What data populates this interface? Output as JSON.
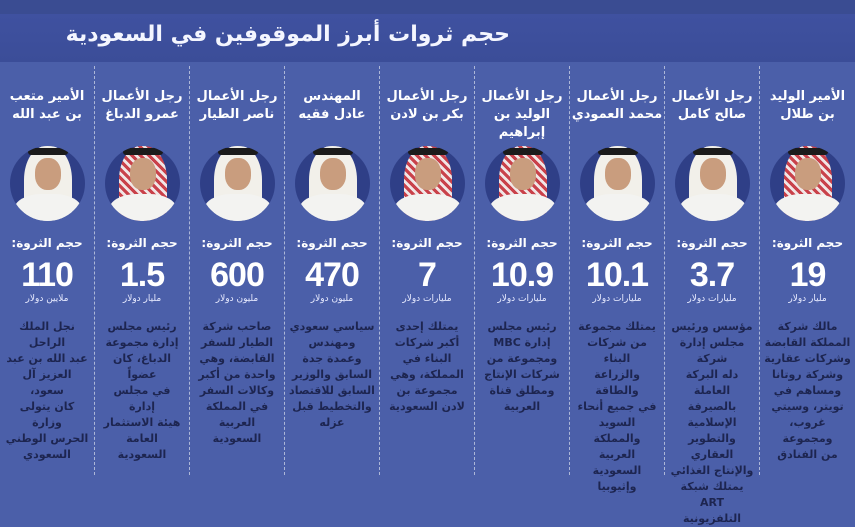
{
  "title": "حجم ثروات أبرز الموقوفين في السعودية",
  "colors": {
    "background": "#4b5fa9",
    "title_bar": "#3b4d98",
    "portrait_bg": "#2f3f87",
    "description_text": "#1d2550"
  },
  "wealth_label": "حجم الثروة:",
  "people": [
    {
      "name": "الأمير الوليد\nبن طلال",
      "value": "19",
      "unit": "مليار دولار",
      "desc": "مالك شركة\nالمملكة القابضة\nوشركات عقارية\nوشركة روتانا\nومساهم في\nتويتر، وسيتي\nغروب، ومجموعة\nمن الفنادق",
      "icon": "person-portrait",
      "headwear": "red"
    },
    {
      "name": "رجل الأعمال\nصالح كامل",
      "value": "3.7",
      "unit": "مليارات دولار",
      "desc": "مؤسس ورئيس\nمجلس إدارة شركة\nدله البركة العاملة\nبالصيرفة\nالإسلامية\nوالتطوير العقاري\nوالإنتاج الغذائي\nيمتلك شبكة ART\nالتلفزيونية",
      "icon": "person-portrait",
      "headwear": "white"
    },
    {
      "name": "رجل الأعمال\nمحمد العمودي",
      "value": "10.1",
      "unit": "مليارات دولار",
      "desc": "يمتلك مجموعة\nمن شركات البناء\nوالزراعة والطاقة\nفي جميع أنحاء\nالسويد\nوالمملكة العربية\nالسعودية\nوإثيوبيا",
      "icon": "person-portrait",
      "headwear": "white"
    },
    {
      "name": "رجل الأعمال\nالوليد بن إبراهيم",
      "value": "10.9",
      "unit": "مليارات دولار",
      "desc": "رئيس مجلس\nإدارة MBC\nومجموعة من\nشركات الإنتاج\nومطلق قناة\nالعربية",
      "icon": "person-portrait",
      "headwear": "red"
    },
    {
      "name": "رجل الأعمال\nبكر بن لادن",
      "value": "7",
      "unit": "مليارات دولار",
      "desc": "يمتلك إحدى\nأكبر شركات\nالبناء في\nالمملكة، وهي\nمجموعة بن\nلادن السعودية",
      "icon": "person-portrait",
      "headwear": "red"
    },
    {
      "name": "المهندس\nعادل فقيه",
      "value": "470",
      "unit": "مليون دولار",
      "desc": "سياسي سعودي\nومهندس\nوعمدة جدة\nالسابق والوزير\nالسابق للاقتصاد\nوالتخطيط قبل\nعزله",
      "icon": "person-portrait",
      "headwear": "white"
    },
    {
      "name": "رجل الأعمال\nناصر الطيار",
      "value": "600",
      "unit": "مليون دولار",
      "desc": "صاحب شركة\nالطيار للسفر\nالقابضة، وهي\nواحدة من أكبر\nوكالات السفر\nفي المملكة\nالعربية\nالسعودية",
      "icon": "person-portrait",
      "headwear": "white"
    },
    {
      "name": "رجل الأعمال\nعمرو الدباغ",
      "value": "1.5",
      "unit": "مليار دولار",
      "desc": "رئيس مجلس\nإدارة مجموعة\nالدباغ، كان عضواً\nفي مجلس إدارة\nهيئة الاستثمار\nالعامة\nالسعودية",
      "icon": "person-portrait",
      "headwear": "red"
    },
    {
      "name": "الأمير متعب\nبن عبد الله",
      "value": "110",
      "unit": "ملايين دولار",
      "desc": "نجل الملك الراحل\nعبد الله بن عبد\nالعزيز آل سعود،\nكان يتولى وزارة\nالحرس الوطني\nالسعودي",
      "icon": "person-portrait",
      "headwear": "white"
    }
  ]
}
